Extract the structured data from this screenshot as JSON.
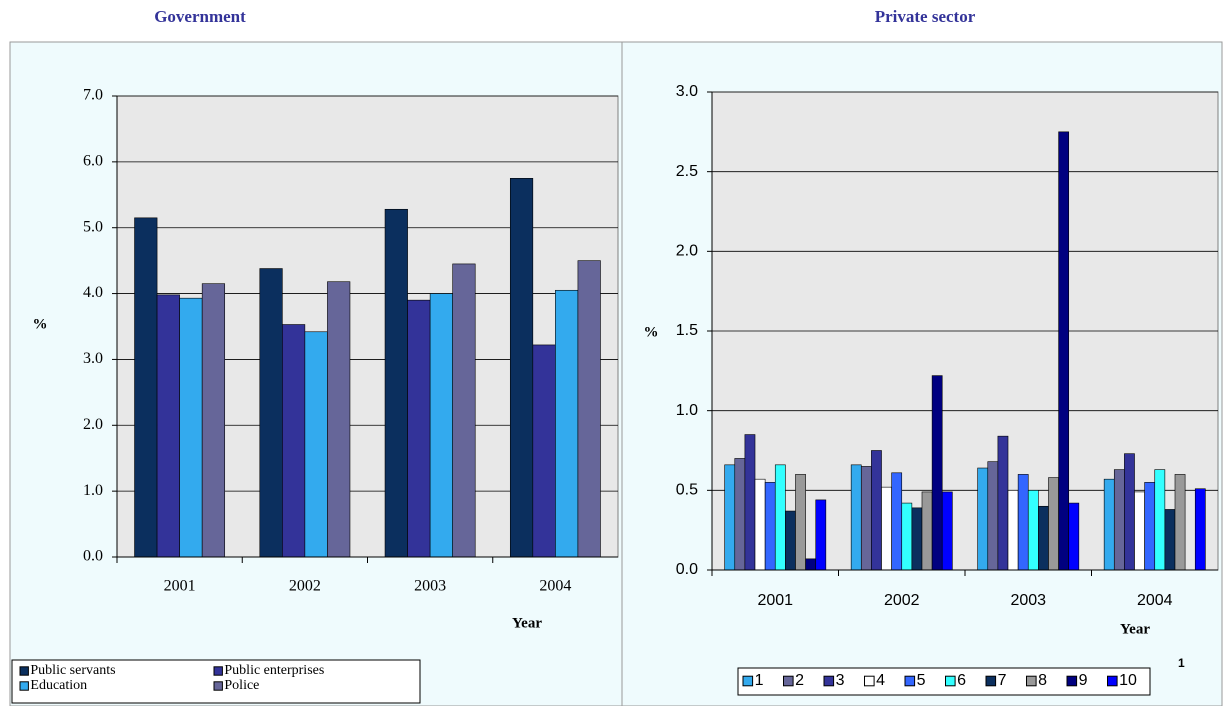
{
  "chart_data": [
    {
      "type": "bar",
      "title": "Government",
      "y_label": "%",
      "x_label": "Year",
      "categories": [
        "2001",
        "2002",
        "2003",
        "2004"
      ],
      "series": [
        {
          "name": "Public servants",
          "color": "#0b2f5e",
          "values": [
            5.15,
            4.38,
            5.28,
            5.75
          ]
        },
        {
          "name": "Public enterprises",
          "color": "#333399",
          "values": [
            3.98,
            3.53,
            3.9,
            3.22
          ]
        },
        {
          "name": "Education",
          "color": "#33aaee",
          "values": [
            3.93,
            3.42,
            4.0,
            4.05
          ]
        },
        {
          "name": "Police",
          "color": "#666699",
          "values": [
            4.15,
            4.18,
            4.45,
            4.5
          ]
        }
      ],
      "ylim": [
        0,
        7
      ],
      "yticks": [
        {
          "value": 0,
          "label": "0.0"
        },
        {
          "value": 1,
          "label": "1.0"
        },
        {
          "value": 2,
          "label": "2.0"
        },
        {
          "value": 3,
          "label": "3.0"
        },
        {
          "value": 4,
          "label": "4.0"
        },
        {
          "value": 5,
          "label": "5.0"
        },
        {
          "value": 6,
          "label": "6.0"
        },
        {
          "value": 7,
          "label": "7.0"
        }
      ],
      "grid": true,
      "legend": "bottom-left"
    },
    {
      "type": "bar",
      "title": "Private sector",
      "y_label": "%",
      "x_label": "Year",
      "annotation": "1",
      "categories": [
        "2001",
        "2002",
        "2003",
        "2004"
      ],
      "series": [
        {
          "name": "1",
          "color": "#33aaee",
          "values": [
            0.66,
            0.66,
            0.64,
            0.57
          ]
        },
        {
          "name": "2",
          "color": "#666699",
          "values": [
            0.7,
            0.65,
            0.68,
            0.63
          ]
        },
        {
          "name": "3",
          "color": "#333399",
          "values": [
            0.85,
            0.75,
            0.84,
            0.73
          ]
        },
        {
          "name": "4",
          "color": "#ffffff",
          "values": [
            0.57,
            0.52,
            0.5,
            0.49
          ]
        },
        {
          "name": "5",
          "color": "#3366ff",
          "values": [
            0.55,
            0.61,
            0.6,
            0.55
          ]
        },
        {
          "name": "6",
          "color": "#33ffff",
          "values": [
            0.66,
            0.42,
            0.5,
            0.63
          ]
        },
        {
          "name": "7",
          "color": "#0b2f5e",
          "values": [
            0.37,
            0.39,
            0.4,
            0.38
          ]
        },
        {
          "name": "8",
          "color": "#999999",
          "values": [
            0.6,
            0.49,
            0.58,
            0.6
          ]
        },
        {
          "name": "9",
          "color": "#000080",
          "values": [
            0.07,
            1.22,
            2.75,
            null
          ]
        },
        {
          "name": "10",
          "color": "#0000ff",
          "values": [
            0.44,
            0.49,
            0.42,
            0.51
          ]
        }
      ],
      "ylim": [
        0,
        3
      ],
      "yticks": [
        {
          "value": 0,
          "label": "0.0"
        },
        {
          "value": 0.5,
          "label": "0.5"
        },
        {
          "value": 1,
          "label": "1.0"
        },
        {
          "value": 1.5,
          "label": "1.5"
        },
        {
          "value": 2,
          "label": "2.0"
        },
        {
          "value": 2.5,
          "label": "2.5"
        },
        {
          "value": 3,
          "label": "3.0"
        }
      ],
      "grid": true,
      "legend": "bottom"
    }
  ]
}
